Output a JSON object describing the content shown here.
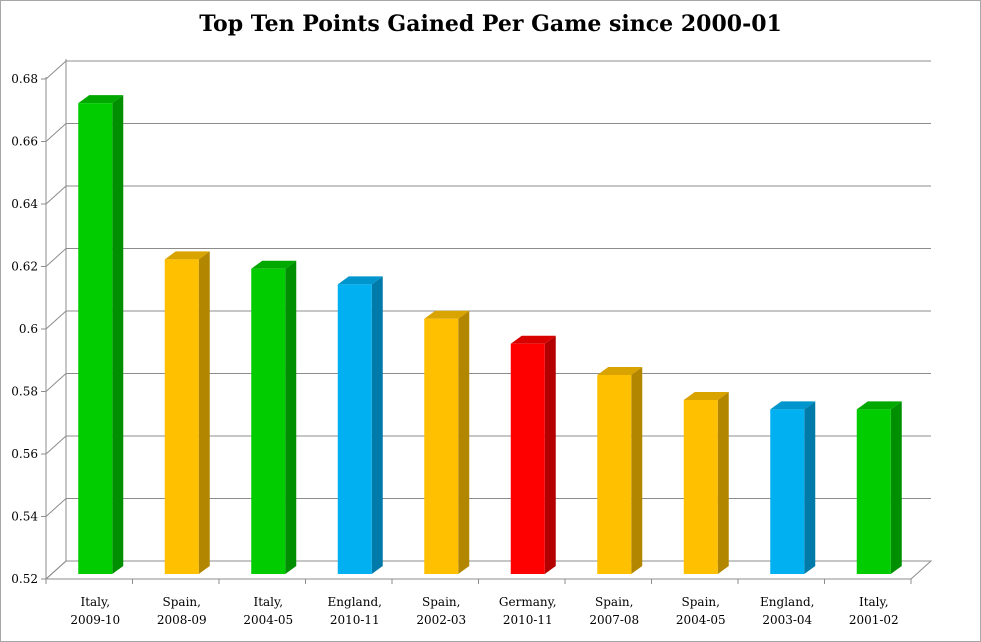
{
  "chart_data": {
    "type": "bar",
    "title": "Top Ten Points Gained Per Game since 2000-01",
    "xlabel": "",
    "ylabel": "",
    "ylim": [
      0.52,
      0.68
    ],
    "yticks": [
      "0.52",
      "0.54",
      "0.56",
      "0.58",
      "0.6",
      "0.62",
      "0.64",
      "0.66",
      "0.68"
    ],
    "grid": true,
    "categories": [
      [
        "Italy,",
        "2009-10"
      ],
      [
        "Spain,",
        "2008-09"
      ],
      [
        "Italy,",
        "2004-05"
      ],
      [
        "England,",
        "2010-11"
      ],
      [
        "Spain,",
        "2002-03"
      ],
      [
        "Germany,",
        "2010-11"
      ],
      [
        "Spain,",
        "2007-08"
      ],
      [
        "Spain,",
        "2004-05"
      ],
      [
        "England,",
        "2003-04"
      ],
      [
        "Italy,",
        "2001-02"
      ]
    ],
    "values": [
      0.671,
      0.621,
      0.618,
      0.613,
      0.602,
      0.594,
      0.584,
      0.576,
      0.573,
      0.573
    ],
    "countries": [
      "Italy",
      "Spain",
      "Italy",
      "England",
      "Spain",
      "Germany",
      "Spain",
      "Spain",
      "England",
      "Italy"
    ],
    "colors": {
      "Italy": {
        "front": "#00cc00",
        "side": "#008f00",
        "top": "#00a800"
      },
      "Spain": {
        "front": "#ffc000",
        "side": "#b38600",
        "top": "#d9a300"
      },
      "England": {
        "front": "#00b0f0",
        "side": "#007aa8",
        "top": "#0095cc"
      },
      "Germany": {
        "front": "#ff0000",
        "side": "#b30000",
        "top": "#d90000"
      }
    }
  }
}
